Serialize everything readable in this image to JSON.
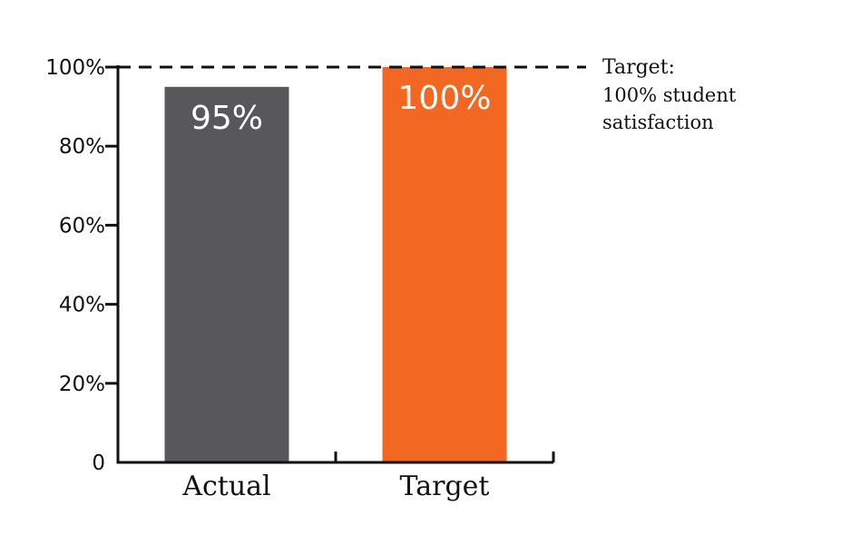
{
  "chart_data": {
    "type": "bar",
    "categories": [
      "Actual",
      "Target"
    ],
    "values": [
      95,
      100
    ],
    "value_labels": [
      "95%",
      "100%"
    ],
    "y_tick_labels": [
      "0",
      "20%",
      "40%",
      "60%",
      "80%",
      "100%"
    ],
    "y_ticks": [
      0,
      20,
      40,
      60,
      80,
      100
    ],
    "ylim": [
      0,
      100
    ],
    "reference_line": {
      "value": 100,
      "style": "dashed",
      "label_title": "Target:",
      "label_text": "100% student satisfaction"
    },
    "grid": false,
    "colors": [
      "#58585a",
      "#f26722"
    ]
  }
}
